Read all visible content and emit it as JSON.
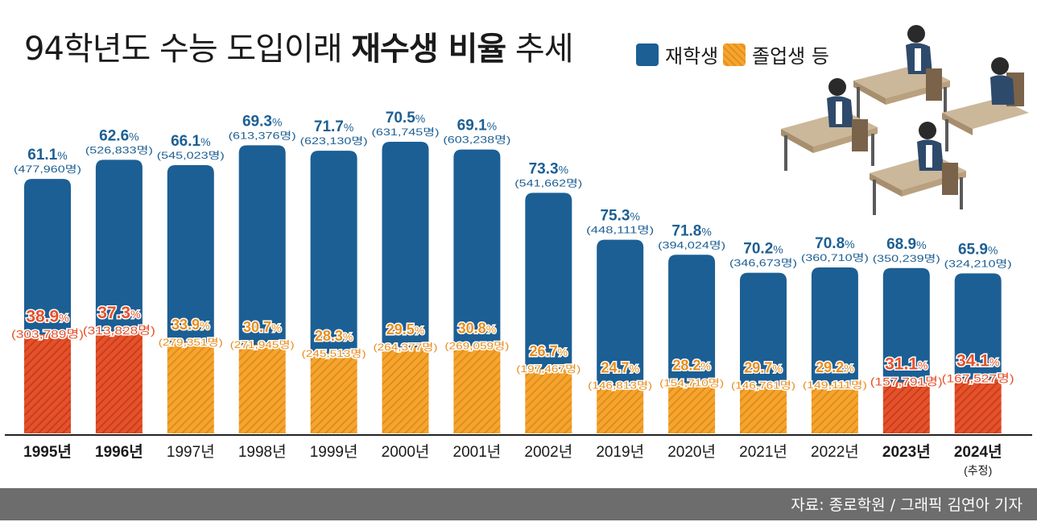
{
  "title": {
    "normal1": "94학년도 수능 도입이래 ",
    "bold": "재수생 비율",
    "normal2": " 추세"
  },
  "legend": [
    {
      "label": "재학생",
      "color": "#1c5f94"
    },
    {
      "label": "졸업생 등",
      "color": "#f2a62e"
    }
  ],
  "source": "자료: 종로학원 / 그래픽 김연아 기자",
  "colors": {
    "student": "#1c5f94",
    "grad": "#f2a62e",
    "grad_highlight": "#e5512a",
    "student_text": "#1c5f94",
    "grad_text": "#e98d1d",
    "highlight_text": "#e5512a"
  },
  "chart_data": {
    "type": "bar",
    "stacked": true,
    "title": "94학년도 수능 도입이래 재수생 비율 추세",
    "categories": [
      "1995년",
      "1996년",
      "1997년",
      "1998년",
      "1999년",
      "2000년",
      "2001년",
      "2002년",
      "2019년",
      "2020년",
      "2021년",
      "2022년",
      "2023년",
      "2024년"
    ],
    "category_notes": [
      "",
      "",
      "",
      "",
      "",
      "",
      "",
      "",
      "",
      "",
      "",
      "",
      "",
      "(추정)"
    ],
    "highlight": [
      true,
      true,
      false,
      false,
      false,
      false,
      false,
      false,
      false,
      false,
      false,
      false,
      true,
      true
    ],
    "series": [
      {
        "name": "재학생",
        "pct": [
          61.1,
          62.6,
          66.1,
          69.3,
          71.7,
          70.5,
          69.1,
          73.3,
          75.3,
          71.8,
          70.2,
          70.8,
          68.9,
          65.9
        ],
        "counts": [
          "(477,960명)",
          "(526,833명)",
          "(545,023명)",
          "(613,376명)",
          "(623,130명)",
          "(631,745명)",
          "(603,238명)",
          "(541,662명)",
          "(448,111명)",
          "(394,024명)",
          "(346,673명)",
          "(360,710명)",
          "(350,239명)",
          "(324,210명)"
        ],
        "values": [
          477960,
          526833,
          545023,
          613376,
          623130,
          631745,
          603238,
          541662,
          448111,
          394024,
          346673,
          360710,
          350239,
          324210
        ]
      },
      {
        "name": "졸업생 등",
        "pct": [
          38.9,
          37.3,
          33.9,
          30.7,
          28.3,
          29.5,
          30.8,
          26.7,
          24.7,
          28.2,
          29.7,
          29.2,
          31.1,
          34.1
        ],
        "counts": [
          "(303,789명)",
          "(313,828명)",
          "(279,351명)",
          "(271,945명)",
          "(245,513명)",
          "(264,377명)",
          "(269,059명)",
          "(197,467명)",
          "(146,813명)",
          "(154,710명)",
          "(146,761명)",
          "(149,111명)",
          "(157,791명)",
          "(167,527명)"
        ],
        "values": [
          303789,
          313828,
          279351,
          271945,
          245513,
          264377,
          269059,
          197467,
          146813,
          154710,
          146761,
          149111,
          157791,
          167527
        ]
      }
    ],
    "pct_unit": "%"
  }
}
